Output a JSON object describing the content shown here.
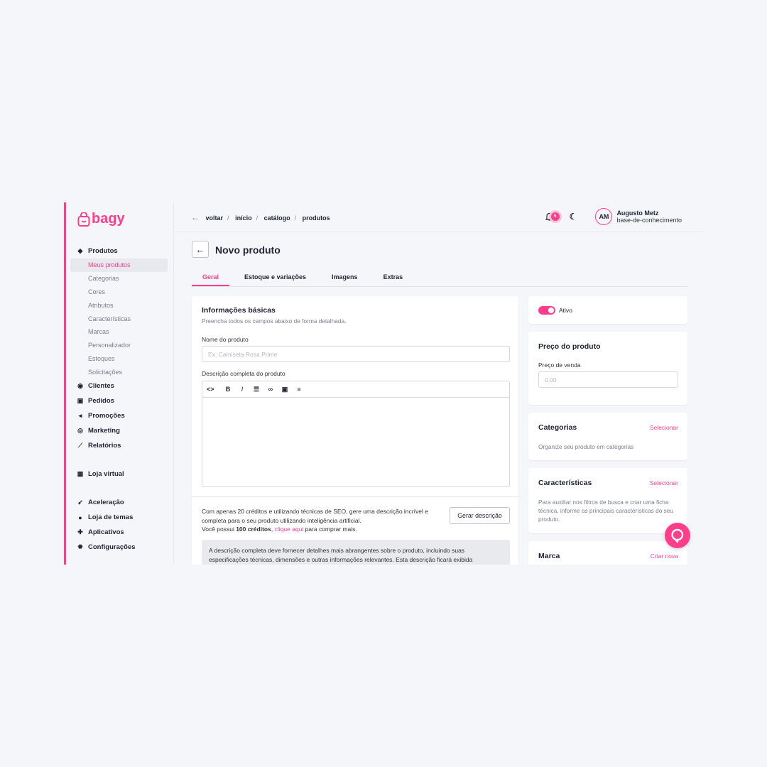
{
  "brand": {
    "logo": "bagy",
    "color": "#ff3d8b"
  },
  "sidebar": {
    "sections": [
      {
        "label": "Produtos",
        "icon": "tag-icon",
        "sub": [
          "Meus produtos",
          "Categorias",
          "Cores",
          "Atributos",
          "Características",
          "Marcas",
          "Personalizador",
          "Estoques",
          "Solicitações"
        ]
      },
      {
        "label": "Clientes",
        "icon": "user-circle-icon"
      },
      {
        "label": "Pedidos",
        "icon": "inbox-icon"
      },
      {
        "label": "Promoções",
        "icon": "megaphone-icon"
      },
      {
        "label": "Marketing",
        "icon": "target-icon"
      },
      {
        "label": "Relatórios",
        "icon": "chart-line-icon"
      },
      {
        "label": "Loja virtual",
        "icon": "store-icon"
      },
      {
        "label": "Aceleração",
        "icon": "rocket-icon"
      },
      {
        "label": "Loja de temas",
        "icon": "palette-icon"
      },
      {
        "label": "Aplicativos",
        "icon": "puzzle-icon"
      },
      {
        "label": "Configurações",
        "icon": "gear-icon"
      }
    ]
  },
  "breadcrumb": [
    "voltar",
    "início",
    "catálogo",
    "produtos"
  ],
  "header": {
    "notifications": "5",
    "user_initials": "AM",
    "user_name": "Augusto Metz",
    "store": "base-de-conhecimento"
  },
  "page": {
    "title": "Novo produto",
    "tabs": [
      "Geral",
      "Estoque e variações",
      "Imagens",
      "Extras"
    ],
    "active_tab": 0
  },
  "basic": {
    "title": "Informações básicas",
    "subtitle": "Preencha todos os campos abaixo de forma detalhada.",
    "name_label": "Nome do produto",
    "name_placeholder": "Ex: Camiseta Rosa Prime",
    "desc_label": "Descrição completa do produto"
  },
  "ai": {
    "line1": "Com apenas 20 créditos e utilizando técnicas de SEO, gere uma descrição incrível e completa para o seu produto utilizando inteligência artificial.",
    "credits_prefix": "Você possui ",
    "credits": "100 créditos",
    "comma": ", ",
    "link": "clique aqui",
    "suffix": " para comprar mais.",
    "button": "Gerar descrição"
  },
  "info_box": "A descrição completa deve fornecer detalhes mais abrangentes sobre o produto, incluindo suas especificações técnicas, dimensões e outras informações relevantes. Esta descrição ficará exibida",
  "status": {
    "label": "Ativo",
    "on": true
  },
  "price": {
    "title": "Preço do produto",
    "label": "Preço de venda",
    "placeholder": "0.00"
  },
  "categories": {
    "title": "Categorias",
    "action": "Selecionar",
    "text": "Organize seu produto em categorias"
  },
  "features": {
    "title": "Características",
    "action": "Selecionar",
    "text": "Para auxiliar nos filtros de busca e criar uma ficha técnica, informe as principais características do seu produto."
  },
  "brand_card": {
    "title": "Marca",
    "action": "Criar nova"
  }
}
